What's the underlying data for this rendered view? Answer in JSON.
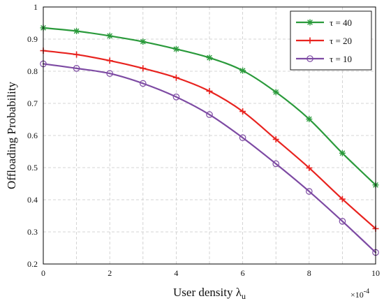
{
  "chart_data": {
    "type": "line",
    "xlabel": "User density λ",
    "xlabel_sub": "u",
    "ylabel": "Offloading Probability",
    "x_multiplier": "×10",
    "x_multiplier_exp": "-4",
    "xlim": [
      0,
      10
    ],
    "ylim": [
      0.2,
      1.0
    ],
    "xticks": [
      0,
      2,
      4,
      6,
      8,
      10
    ],
    "xtick_labels": [
      "0",
      "2",
      "4",
      "6",
      "8",
      "10"
    ],
    "yticks": [
      0.2,
      0.3,
      0.4,
      0.5,
      0.6,
      0.7,
      0.8,
      0.9,
      1.0
    ],
    "ytick_labels": [
      "0.2",
      "0.3",
      "0.4",
      "0.5",
      "0.6",
      "0.7",
      "0.8",
      "0.9",
      "1"
    ],
    "grid": true,
    "legend_position": "top-right",
    "x": [
      0,
      1,
      2,
      3,
      4,
      5,
      6,
      7,
      8,
      9,
      10
    ],
    "series": [
      {
        "name": "τ = 40",
        "color": "#2a9a3b",
        "marker": "asterisk",
        "values": [
          0.935,
          0.925,
          0.91,
          0.892,
          0.869,
          0.842,
          0.802,
          0.735,
          0.651,
          0.545,
          0.446
        ]
      },
      {
        "name": "τ = 20",
        "color": "#e8231f",
        "marker": "plus",
        "values": [
          0.864,
          0.852,
          0.833,
          0.809,
          0.78,
          0.738,
          0.675,
          0.588,
          0.499,
          0.402,
          0.31
        ]
      },
      {
        "name": "τ = 10",
        "color": "#7d4aa3",
        "marker": "circle",
        "values": [
          0.823,
          0.809,
          0.793,
          0.762,
          0.72,
          0.665,
          0.593,
          0.512,
          0.426,
          0.333,
          0.236
        ]
      }
    ]
  }
}
